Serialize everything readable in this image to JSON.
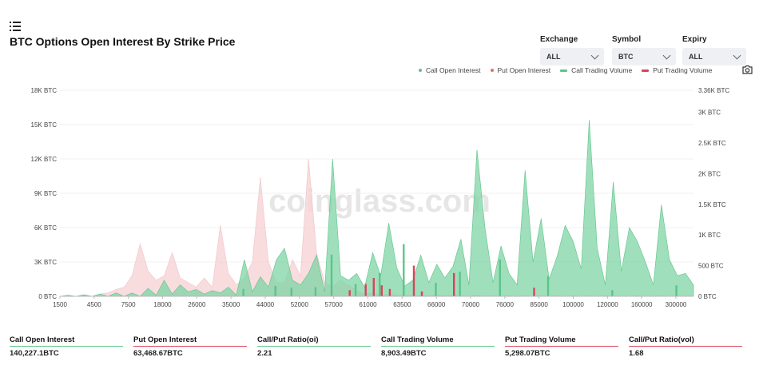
{
  "title": "BTC Options Open Interest By Strike Price",
  "filters": {
    "exchange": {
      "label": "Exchange",
      "value": "ALL"
    },
    "symbol": {
      "label": "Symbol",
      "value": "BTC"
    },
    "expiry": {
      "label": "Expiry",
      "value": "ALL"
    }
  },
  "icons": {
    "menu": "list-menu-icon",
    "camera": "camera-icon",
    "chevron": "chevron-down-icon"
  },
  "watermark": "coinglass.com",
  "colors": {
    "call": "#5cc48a",
    "call_fill": "#7fd4a4",
    "put": "#d9435a",
    "put_fill": "#f6d3d6",
    "put_dot": "#e07070"
  },
  "legend": [
    {
      "label": "Call Open Interest",
      "marker": "dot",
      "color": "#5cc48a"
    },
    {
      "label": "Put  Open Interest",
      "marker": "dot",
      "color": "#e07070"
    },
    {
      "label": "Call Trading Volume",
      "marker": "bar",
      "color": "#5cc48a"
    },
    {
      "label": "Put  Trading Volume",
      "marker": "bar",
      "color": "#d9435a"
    }
  ],
  "chart_data": {
    "type": "area",
    "x_tick_labels": [
      "1500",
      "4500",
      "7500",
      "18000",
      "26000",
      "35000",
      "44000",
      "52000",
      "57000",
      "61000",
      "63500",
      "66000",
      "70000",
      "76000",
      "85000",
      "100000",
      "120000",
      "160000",
      "300000"
    ],
    "left_axis": {
      "ticks": [
        "0 BTC",
        "3K BTC",
        "6K BTC",
        "9K BTC",
        "12K BTC",
        "15K BTC",
        "18K BTC"
      ],
      "ylim": [
        0,
        18000
      ]
    },
    "right_axis": {
      "ticks": [
        "0 BTC",
        "500 BTC",
        "1K BTC",
        "1.5K BTC",
        "2K BTC",
        "2.5K BTC",
        "3K BTC",
        "3.36K BTC"
      ],
      "ylim": [
        0,
        3360
      ]
    },
    "series": [
      {
        "name": "Call Open Interest",
        "axis": "left",
        "values": [
          0,
          100,
          0,
          150,
          0,
          200,
          0,
          300,
          0,
          300,
          0,
          700,
          100,
          1400,
          200,
          1000,
          400,
          600,
          200,
          500,
          300,
          800,
          100,
          3200,
          400,
          1700,
          800,
          3200,
          4200,
          1400,
          1000,
          2000,
          3600,
          400,
          12000,
          1800,
          1400,
          2000,
          800,
          3800,
          1800,
          6400,
          2500,
          900,
          1400,
          3600,
          1200,
          2800,
          1600,
          2600,
          5000,
          1000,
          12800,
          6000,
          1200,
          4400,
          2000,
          1000,
          11000,
          3000,
          6800,
          1500,
          3500,
          6200,
          4800,
          2400,
          15400,
          4200,
          1000,
          10000,
          2200,
          6000,
          4800,
          3000,
          1000,
          8000,
          3200,
          1800,
          2000,
          1000
        ]
      },
      {
        "name": "Put  Open Interest",
        "axis": "left",
        "values": [
          0,
          0,
          0,
          100,
          0,
          200,
          300,
          600,
          800,
          1800,
          4600,
          2200,
          1400,
          1800,
          3800,
          1600,
          1200,
          800,
          1600,
          800,
          6200,
          2000,
          1000,
          1600,
          3000,
          10400,
          3000,
          1200,
          1200,
          3200,
          1800,
          12000,
          3800,
          1200,
          800,
          1400,
          1000,
          500,
          200,
          300,
          100,
          200,
          100,
          50,
          30,
          100,
          50,
          100,
          50,
          100,
          50,
          0,
          100,
          0,
          50,
          0,
          50,
          0,
          50,
          0,
          50,
          0,
          50,
          0,
          50,
          0,
          50,
          0,
          50,
          0,
          0,
          0,
          50,
          0,
          0,
          50,
          0,
          0,
          0,
          0
        ]
      },
      {
        "name": "Call Trading Volume",
        "axis": "right",
        "values": [
          0,
          0,
          0,
          0,
          0,
          0,
          0,
          0,
          0,
          0,
          0,
          0,
          0,
          0,
          0,
          0,
          0,
          0,
          0,
          0,
          0,
          0,
          0,
          120,
          0,
          0,
          0,
          170,
          0,
          140,
          0,
          0,
          150,
          0,
          680,
          0,
          0,
          200,
          0,
          0,
          380,
          0,
          0,
          850,
          0,
          0,
          0,
          220,
          0,
          0,
          400,
          0,
          0,
          0,
          0,
          600,
          0,
          0,
          0,
          0,
          0,
          330,
          0,
          0,
          0,
          0,
          0,
          0,
          0,
          100,
          0,
          0,
          0,
          0,
          0,
          0,
          0,
          180,
          0,
          0
        ]
      },
      {
        "name": "Put  Trading Volume",
        "axis": "right",
        "values": [
          0,
          0,
          0,
          0,
          0,
          0,
          0,
          0,
          0,
          0,
          0,
          0,
          0,
          0,
          0,
          0,
          0,
          0,
          0,
          0,
          0,
          0,
          0,
          0,
          0,
          0,
          0,
          0,
          0,
          0,
          0,
          0,
          0,
          0,
          0,
          0,
          100,
          0,
          200,
          300,
          180,
          120,
          0,
          0,
          500,
          80,
          0,
          0,
          0,
          380,
          0,
          0,
          0,
          0,
          0,
          0,
          0,
          0,
          0,
          140,
          0,
          0,
          0,
          0,
          0,
          0,
          0,
          0,
          0,
          0,
          0,
          0,
          0,
          0,
          0,
          0,
          0,
          0,
          0,
          0
        ]
      }
    ]
  },
  "stats": [
    {
      "label": "Call Open Interest",
      "value": "140,227.1BTC",
      "color": "#5cc48a"
    },
    {
      "label": "Put Open Interest",
      "value": "63,468.67BTC",
      "color": "#d9435a"
    },
    {
      "label": "Call/Put Ratio(oi)",
      "value": "2.21",
      "color": "#5cc48a"
    },
    {
      "label": "Call Trading Volume",
      "value": "8,903.49BTC",
      "color": "#5cc48a"
    },
    {
      "label": "Put Trading Volume",
      "value": "5,298.07BTC",
      "color": "#d9435a"
    },
    {
      "label": "Call/Put Ratio(vol)",
      "value": "1.68",
      "color": "#d9435a"
    }
  ]
}
